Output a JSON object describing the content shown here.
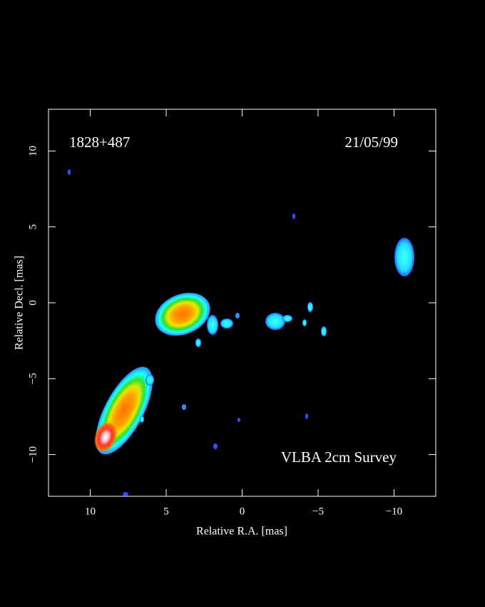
{
  "chart_data": {
    "type": "image",
    "x_label": "Relative R.A. [mas]",
    "y_label": "Relative Decl. [mas]",
    "annotations": [
      "1828+487",
      "21/05/99",
      "VLBA 2cm Survey"
    ],
    "xlim": [
      12.75,
      -12.75
    ],
    "ylim": [
      -12.75,
      12.75
    ],
    "xticks": [
      10,
      5,
      0,
      {
        "value": -5,
        "label": "−5"
      },
      {
        "value": -10,
        "label": "−10"
      }
    ],
    "yticks": [
      {
        "value": -10,
        "label": "−10"
      },
      {
        "value": -5,
        "label": "−5"
      },
      0,
      5,
      10
    ]
  }
}
